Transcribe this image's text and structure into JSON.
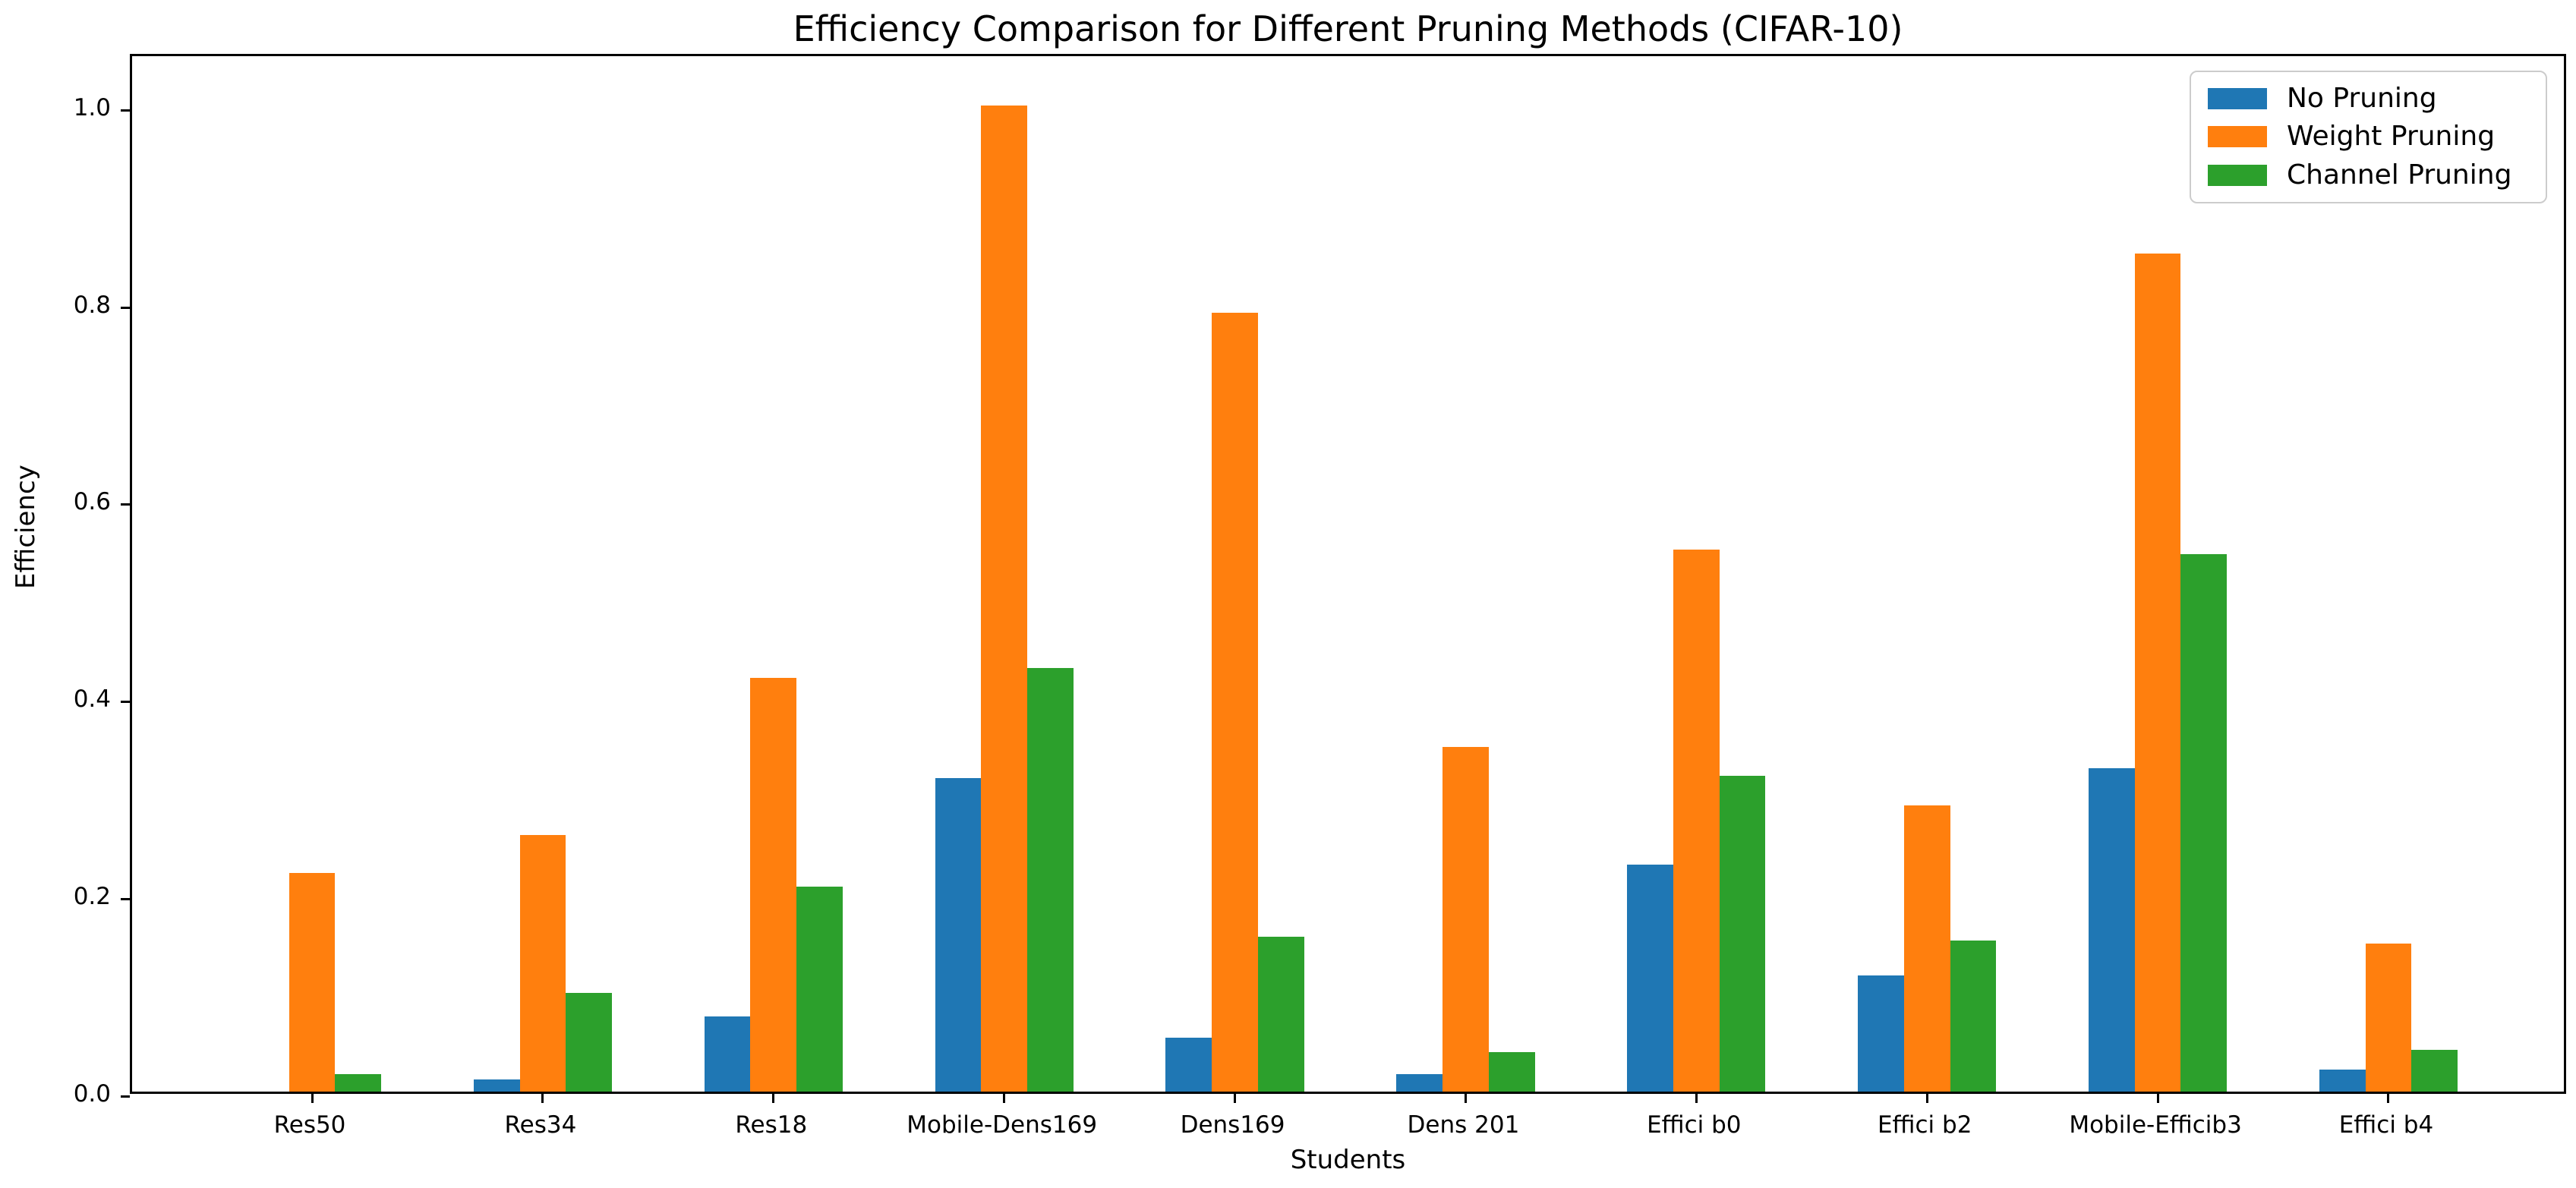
{
  "figure": {
    "title": "Efficiency Comparison for Different Pruning Methods (CIFAR-10)"
  },
  "chart_data": {
    "type": "bar",
    "title": "Efficiency Comparison for Different Pruning Methods (CIFAR-10)",
    "xlabel": "Students",
    "ylabel": "Efficiency",
    "categories": [
      "Res50",
      "Res34",
      "Res18",
      "Mobile-Dens169",
      "Dens169",
      "Dens 201",
      "Effici b0",
      "Effici b2",
      "Mobile-Efficib3",
      "Effici b4"
    ],
    "series": [
      {
        "name": "No Pruning",
        "color": "#1f77b4",
        "values": [
          0.0,
          0.012,
          0.076,
          0.318,
          0.055,
          0.018,
          0.23,
          0.118,
          0.328,
          0.022
        ]
      },
      {
        "name": "Weight Pruning",
        "color": "#ff7f0e",
        "values": [
          0.222,
          0.26,
          0.42,
          1.0,
          0.79,
          0.35,
          0.55,
          0.29,
          0.85,
          0.15
        ]
      },
      {
        "name": "Channel Pruning",
        "color": "#2ca02c",
        "values": [
          0.018,
          0.1,
          0.208,
          0.43,
          0.157,
          0.04,
          0.32,
          0.153,
          0.545,
          0.042
        ]
      }
    ],
    "ylim": [
      0,
      1.055
    ],
    "yticks": [
      "0.0",
      "0.2",
      "0.4",
      "0.6",
      "0.8",
      "1.0"
    ],
    "ytick_values": [
      0.0,
      0.2,
      0.4,
      0.6,
      0.8,
      1.0
    ],
    "x_margin": 0.78,
    "bar_width": 0.2,
    "grid": false,
    "legend_position": "upper right"
  }
}
